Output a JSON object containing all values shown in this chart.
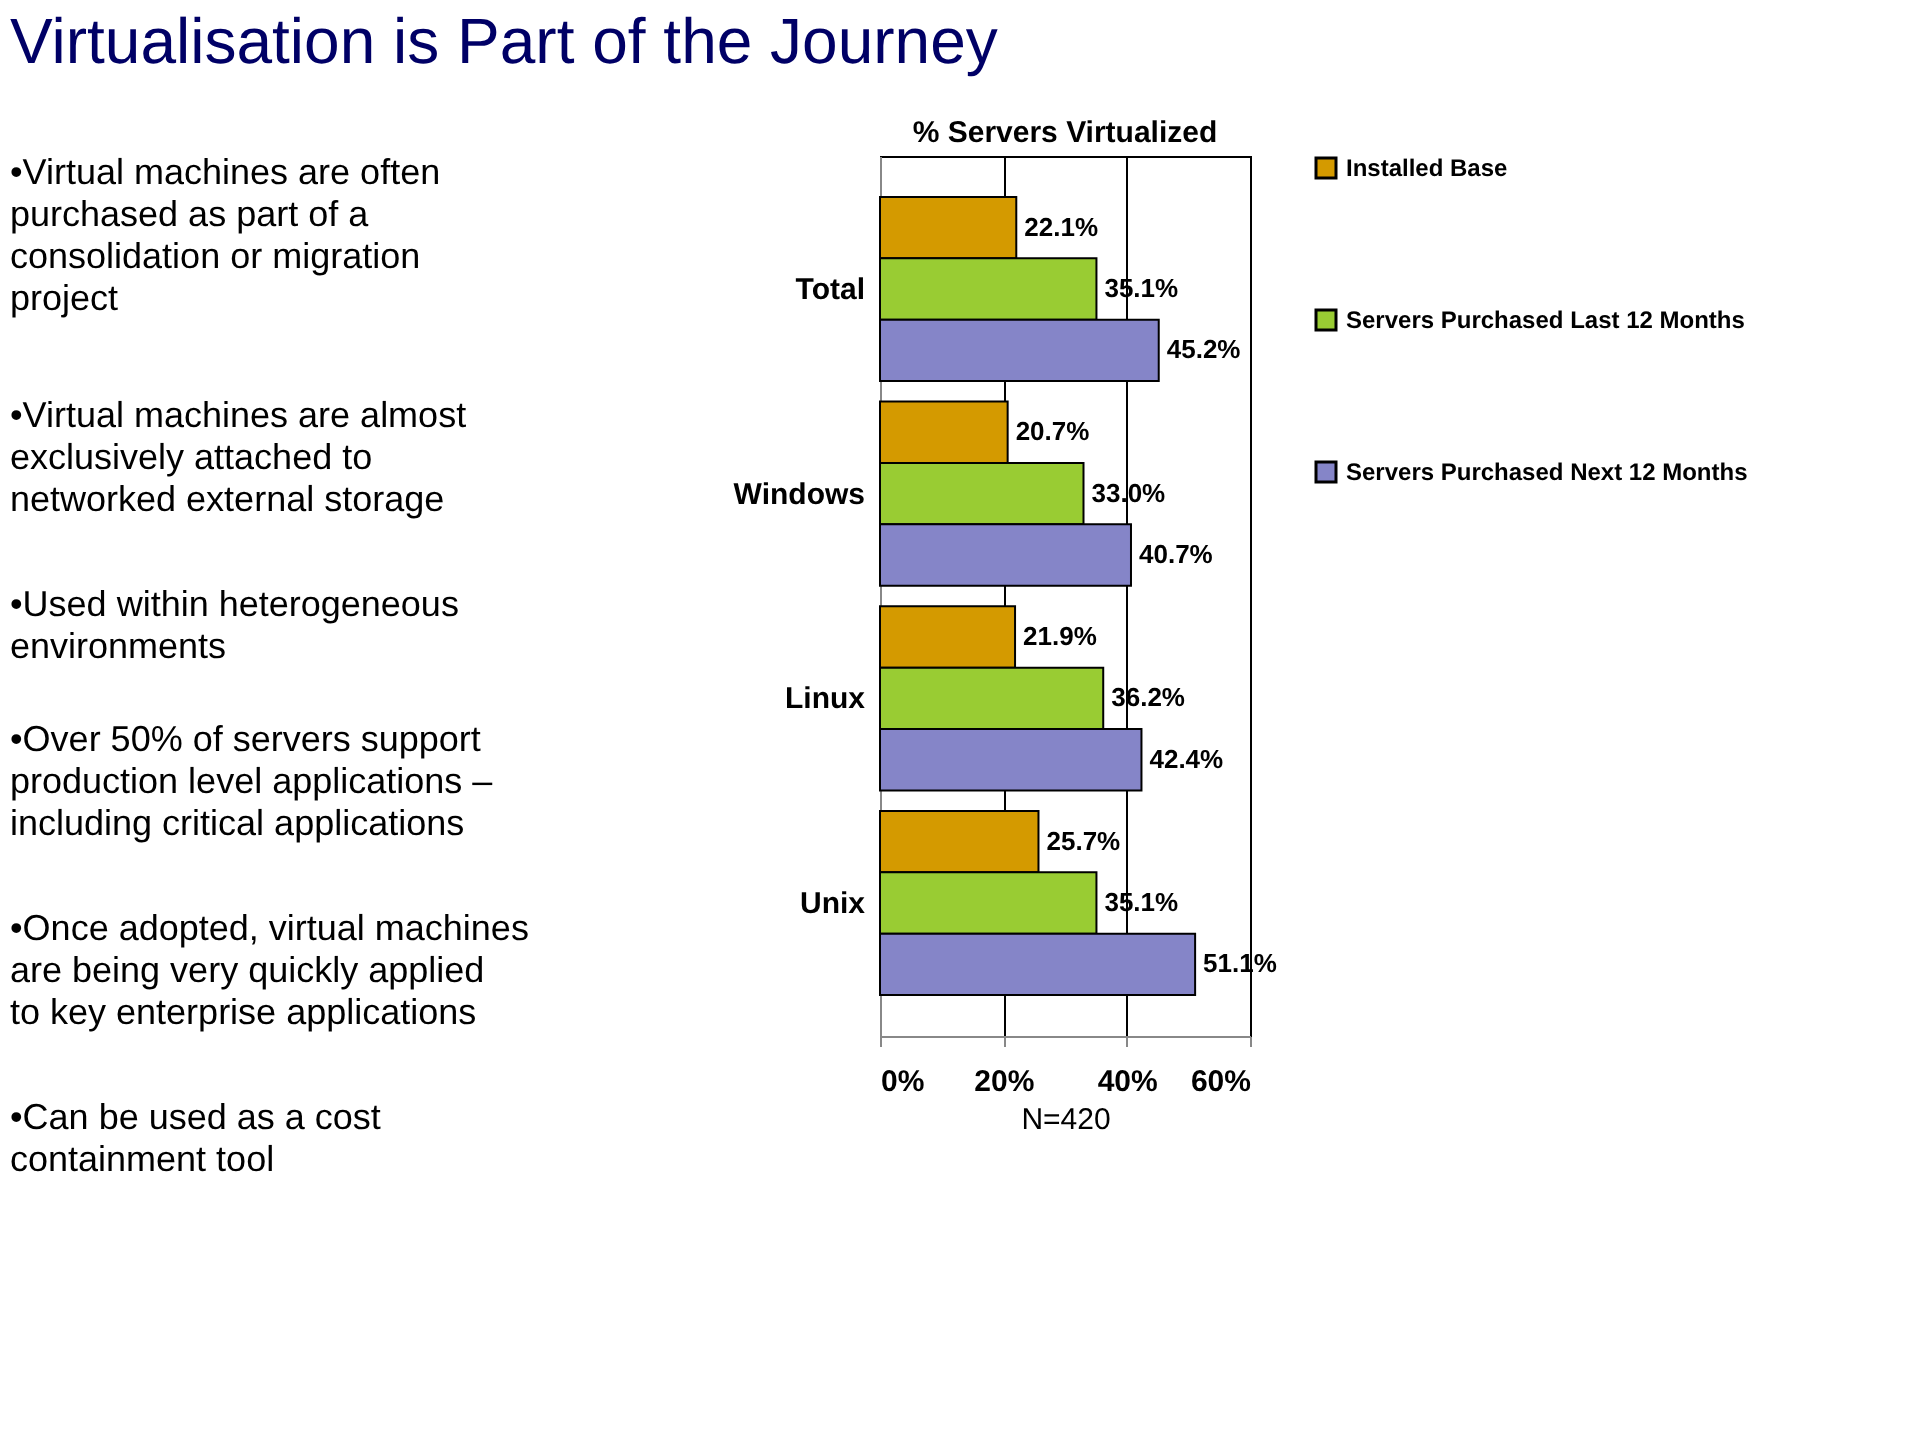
{
  "chart_data": {
    "type": "bar",
    "orientation": "horizontal",
    "title": "Virtualisation is Part of the Journey",
    "subtitle": "% Servers Virtualized",
    "xlabel": "N=420",
    "categories": [
      "Total",
      "Windows",
      "Linux",
      "Unix"
    ],
    "series": [
      {
        "name": "Installed Base",
        "color": "#d49a00",
        "values": [
          22.1,
          20.7,
          21.9,
          25.7
        ],
        "value_labels": [
          "22.1%",
          "20.7%",
          "21.9%",
          "25.7%"
        ]
      },
      {
        "name": "Servers Purchased Last 12 Months",
        "color": "#99cc33",
        "values": [
          35.1,
          33.0,
          36.2,
          35.1
        ],
        "value_labels": [
          "35.1%",
          "33.0%",
          "36.2%",
          "35.1%"
        ]
      },
      {
        "name": "Servers Purchased Next 12 Months",
        "color": "#8585c8",
        "values": [
          45.2,
          40.7,
          42.4,
          51.1
        ],
        "value_labels": [
          "45.2%",
          "40.7%",
          "42.4%",
          "51.1%"
        ]
      }
    ],
    "xlim": [
      0,
      60
    ],
    "xticks": [
      {
        "value": 0,
        "label": "0%"
      },
      {
        "value": 20,
        "label": "20%"
      },
      {
        "value": 40,
        "label": "40%"
      },
      {
        "value": 60,
        "label": "60%"
      }
    ],
    "grid": "x",
    "legend": "right",
    "annotations": [
      "•Virtual machines are often purchased as part of a consolidation or migration project",
      "•Virtual machines are almost exclusively attached to networked external storage",
      "•Used within heterogeneous environments",
      "•Over 50% of servers support production level applications – including critical applications",
      "•Once adopted, virtual machines are being very quickly applied to key enterprise applications",
      "•Can be used as a cost containment  tool"
    ]
  }
}
